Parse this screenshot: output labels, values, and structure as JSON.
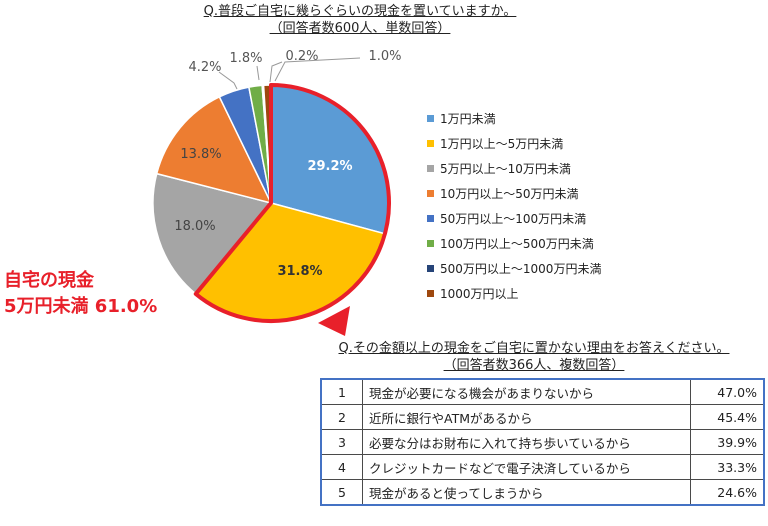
{
  "question1": {
    "title": "Q.普段ご自宅に幾らぐらいの現金を置いていますか。",
    "subtitle": "（回答者数600人、単数回答）"
  },
  "chart_data": {
    "type": "pie",
    "slices": [
      {
        "label": "1万円未満",
        "value": 29.2,
        "value_label": "29.2%",
        "color": "#5b9bd5"
      },
      {
        "label": "1万円以上～5万円未満",
        "value": 31.8,
        "value_label": "31.8%",
        "color": "#ffc000"
      },
      {
        "label": "5万円以上～10万円未満",
        "value": 18.0,
        "value_label": "18.0%",
        "color": "#a5a5a5"
      },
      {
        "label": "10万円以上～50万円未満",
        "value": 13.8,
        "value_label": "13.8%",
        "color": "#ed7d31"
      },
      {
        "label": "50万円以上～100万円未満",
        "value": 4.2,
        "value_label": "4.2%",
        "color": "#4472c4"
      },
      {
        "label": "100万円以上～500万円未満",
        "value": 1.8,
        "value_label": "1.8%",
        "color": "#70ad47"
      },
      {
        "label": "500万円以上～1000万円未満",
        "value": 0.2,
        "value_label": "0.2%",
        "color": "#264478"
      },
      {
        "label": "1000万円以上",
        "value": 1.0,
        "value_label": "1.0%",
        "color": "#9e480e"
      }
    ],
    "highlight": {
      "slices": [
        0,
        1
      ],
      "color": "#e8202a"
    },
    "legend_position": "right"
  },
  "callout": {
    "line1": "自宅の現金",
    "line2": "5万円未満 61.0%"
  },
  "question2": {
    "title": "Q.その金額以上の現金をご自宅に置かない理由をお答えください。",
    "subtitle": "（回答者数366人、複数回答）",
    "rows": [
      {
        "rank": "1",
        "reason": "現金が必要になる機会があまりないから",
        "pct": "47.0%"
      },
      {
        "rank": "2",
        "reason": "近所に銀行やATMがあるから",
        "pct": "45.4%"
      },
      {
        "rank": "3",
        "reason": "必要な分はお財布に入れて持ち歩いているから",
        "pct": "39.9%"
      },
      {
        "rank": "4",
        "reason": "クレジットカードなどで電子決済しているから",
        "pct": "33.3%"
      },
      {
        "rank": "5",
        "reason": "現金があると使ってしまうから",
        "pct": "24.6%"
      }
    ]
  }
}
